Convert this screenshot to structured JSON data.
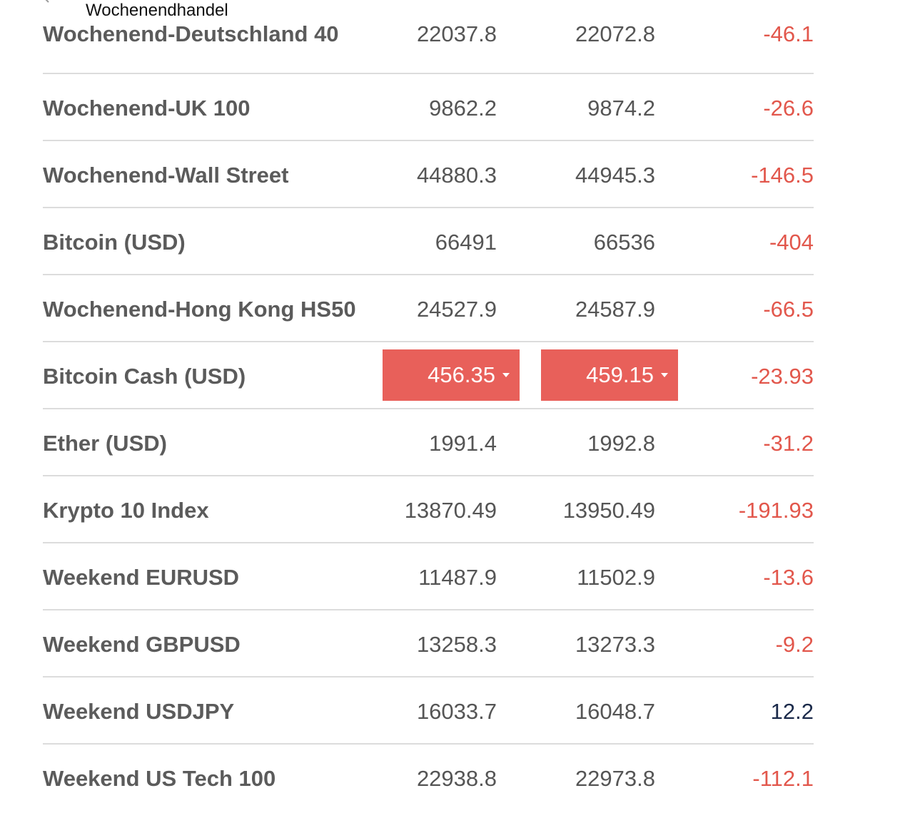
{
  "header": {
    "title": "Wochenendhandel"
  },
  "rows": [
    {
      "name": "Wochenend-Deutschland 40",
      "sell": "22037.8",
      "buy": "22072.8",
      "change": "-46.1",
      "direction": "neg"
    },
    {
      "name": "Wochenend-UK 100",
      "sell": "9862.2",
      "buy": "9874.2",
      "change": "-26.6",
      "direction": "neg"
    },
    {
      "name": "Wochenend-Wall Street",
      "sell": "44880.3",
      "buy": "44945.3",
      "change": "-146.5",
      "direction": "neg"
    },
    {
      "name": "Bitcoin (USD)",
      "sell": "66491",
      "buy": "66536",
      "change": "-404",
      "direction": "neg"
    },
    {
      "name": "Wochenend-Hong Kong HS50",
      "sell": "24527.9",
      "buy": "24587.9",
      "change": "-66.5",
      "direction": "neg"
    },
    {
      "name": "Bitcoin Cash (USD)",
      "sell": "456.35",
      "buy": "459.15",
      "change": "-23.93",
      "direction": "neg",
      "highlight": true
    },
    {
      "name": "Ether (USD)",
      "sell": "1991.4",
      "buy": "1992.8",
      "change": "-31.2",
      "direction": "neg"
    },
    {
      "name": "Krypto 10 Index",
      "sell": "13870.49",
      "buy": "13950.49",
      "change": "-191.93",
      "direction": "neg"
    },
    {
      "name": "Weekend EURUSD",
      "sell": "11487.9",
      "buy": "11502.9",
      "change": "-13.6",
      "direction": "neg"
    },
    {
      "name": "Weekend GBPUSD",
      "sell": "13258.3",
      "buy": "13273.3",
      "change": "-9.2",
      "direction": "neg"
    },
    {
      "name": "Weekend USDJPY",
      "sell": "16033.7",
      "buy": "16048.7",
      "change": "12.2",
      "direction": "pos"
    },
    {
      "name": "Weekend US Tech 100",
      "sell": "22938.8",
      "buy": "22973.8",
      "change": "-112.1",
      "direction": "neg"
    }
  ],
  "colors": {
    "negative": "#e2574c",
    "positive": "#1b2a4a",
    "highlight": "#e8605a",
    "divider": "#dcdcdc"
  },
  "icons": {
    "back": "chevron-left-icon",
    "price_down": "caret-down-icon"
  }
}
